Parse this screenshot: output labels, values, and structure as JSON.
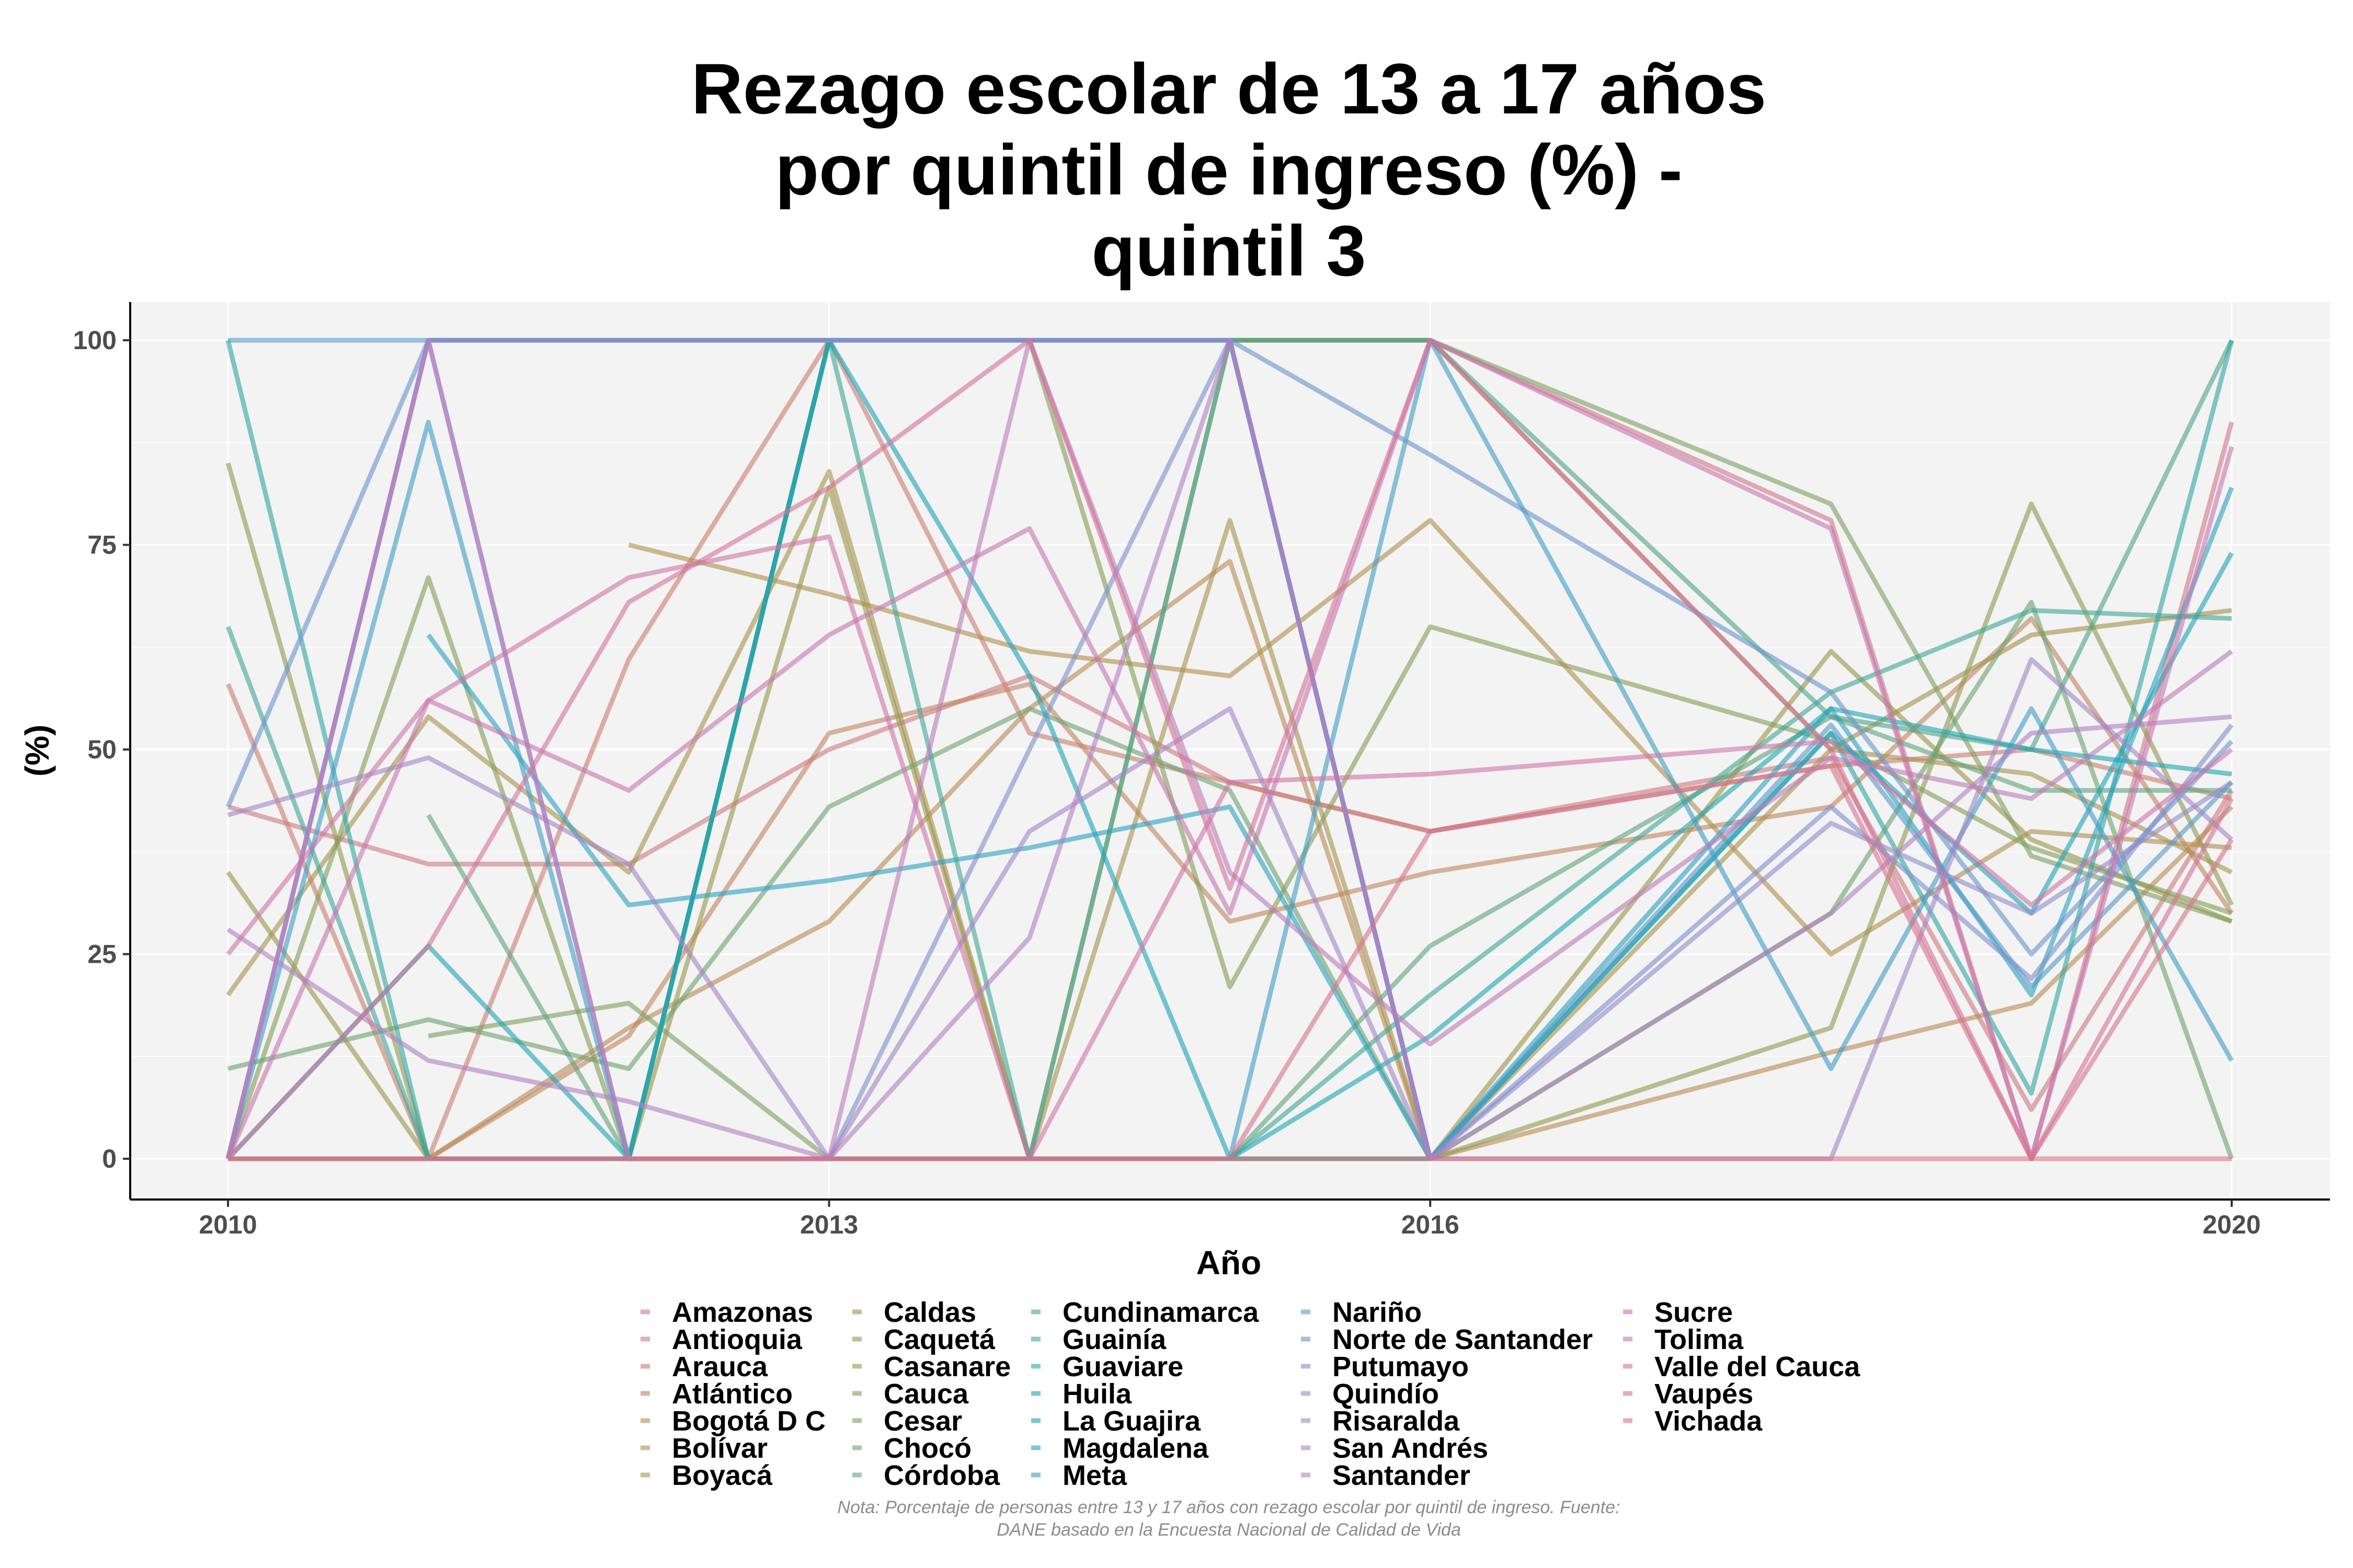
{
  "chart_data": {
    "type": "line",
    "title": "Rezago escolar de 13 a 17 años por quintil de ingreso (%) - quintil 3",
    "title_lines": [
      "Rezago escolar de 13 a 17 años",
      "por quintil de ingreso (%) -",
      "quintil 3"
    ],
    "xlabel": "Año",
    "ylabel": "(%)",
    "xlim": [
      2010,
      2020
    ],
    "ylim": [
      0,
      100
    ],
    "x_ticks": [
      2010,
      2013,
      2016,
      2020
    ],
    "y_ticks": [
      0,
      25,
      50,
      75,
      100
    ],
    "grid": true,
    "legend_position": "bottom",
    "x": [
      2010,
      2011,
      2012,
      2013,
      2014,
      2015,
      2016,
      2018,
      2019,
      2020
    ],
    "note": "Nota: Porcentaje de personas entre 13 y 17 años con rezago escolar por quintil de ingreso. Fuente: DANE basado en la Encuesta Nacional de Calidad de Vida",
    "series": [
      {
        "name": "Amazonas",
        "color": "#d0768c",
        "values": [
          null,
          100,
          100,
          100,
          100,
          100,
          100,
          78,
          0,
          90
        ]
      },
      {
        "name": "Antioquia",
        "color": "#ce7a7f",
        "values": [
          43,
          36,
          36,
          50,
          59,
          46,
          40,
          49,
          6,
          45
        ]
      },
      {
        "name": "Arauca",
        "color": "#c97e6f",
        "values": [
          58,
          0,
          61,
          100,
          52,
          46,
          40,
          48,
          50,
          44
        ]
      },
      {
        "name": "Atlántico",
        "color": "#c2845f",
        "values": [
          0,
          0,
          15,
          52,
          58,
          29,
          35,
          43,
          66,
          30
        ]
      },
      {
        "name": "Bogotá D C",
        "color": "#b98a53",
        "values": [
          null,
          0,
          16,
          29,
          55,
          73,
          0,
          13,
          19,
          43
        ]
      },
      {
        "name": "Bolívar",
        "color": "#b08f4d",
        "values": [
          null,
          null,
          75,
          69,
          62,
          59,
          78,
          25,
          40,
          38
        ]
      },
      {
        "name": "Boyacá",
        "color": "#a6934c",
        "values": [
          20,
          54,
          35,
          84,
          0,
          78,
          0,
          50,
          47,
          35
        ]
      },
      {
        "name": "Caldas",
        "color": "#a19148",
        "values": [
          null,
          100,
          100,
          100,
          100,
          100,
          100,
          50,
          64,
          67
        ]
      },
      {
        "name": "Caquetá",
        "color": "#99964a",
        "values": [
          35,
          0,
          0,
          82,
          0,
          0,
          0,
          62,
          39,
          29
        ]
      },
      {
        "name": "Casanare",
        "color": "#909a4f",
        "values": [
          85,
          0,
          0,
          100,
          100,
          100,
          0,
          16,
          80,
          31
        ]
      },
      {
        "name": "Cauca",
        "color": "#869d57",
        "values": [
          0,
          71,
          0,
          100,
          100,
          21,
          65,
          51,
          38,
          30
        ]
      },
      {
        "name": "Cesar",
        "color": "#7ba061",
        "values": [
          null,
          15,
          19,
          0,
          0,
          100,
          100,
          80,
          37,
          29
        ]
      },
      {
        "name": "Chocó",
        "color": "#6ea26e",
        "values": [
          11,
          17,
          11,
          43,
          55,
          45,
          0,
          30,
          68,
          0
        ]
      },
      {
        "name": "Córdoba",
        "color": "#5fa37c",
        "values": [
          null,
          42,
          0,
          0,
          0,
          0,
          26,
          54,
          45,
          45
        ]
      },
      {
        "name": "Cundinamarca",
        "color": "#4fa48a",
        "values": [
          0,
          0,
          0,
          0,
          0,
          100,
          100,
          54,
          50,
          100
        ]
      },
      {
        "name": "Guainía",
        "color": "#3fa698",
        "values": [
          65,
          0,
          0,
          100,
          0,
          0,
          20,
          57,
          67,
          66
        ]
      },
      {
        "name": "Guaviare",
        "color": "#2ea6a4",
        "values": [
          100,
          0,
          0,
          100,
          100,
          100,
          0,
          52,
          8,
          100
        ]
      },
      {
        "name": "Huila",
        "color": "#1fa5b0",
        "values": [
          null,
          0,
          0,
          0,
          0,
          0,
          15,
          55,
          50,
          47
        ]
      },
      {
        "name": "La Guajira",
        "color": "#1ea3b8",
        "values": [
          0,
          26,
          0,
          100,
          59,
          0,
          0,
          52,
          30,
          74
        ]
      },
      {
        "name": "Magdalena",
        "color": "#2aa1bf",
        "values": [
          null,
          64,
          31,
          34,
          38,
          43,
          0,
          55,
          20,
          82
        ]
      },
      {
        "name": "Meta",
        "color": "#3f9dc5",
        "values": [
          0,
          90,
          0,
          0,
          0,
          0,
          100,
          11,
          55,
          12
        ]
      },
      {
        "name": "Nariño",
        "color": "#5699c9",
        "values": [
          100,
          100,
          100,
          100,
          100,
          100,
          0,
          53,
          21,
          46
        ]
      },
      {
        "name": "Norte de Santander",
        "color": "#6b95cb",
        "values": [
          43,
          100,
          100,
          100,
          100,
          100,
          86,
          57,
          25,
          51
        ]
      },
      {
        "name": "Putumayo",
        "color": "#7f90cb",
        "values": [
          0,
          100,
          0,
          0,
          50,
          100,
          0,
          43,
          22,
          53
        ]
      },
      {
        "name": "Quindío",
        "color": "#918bca",
        "values": [
          0,
          100,
          100,
          100,
          100,
          100,
          0,
          41,
          30,
          46
        ]
      },
      {
        "name": "Risaralda",
        "color": "#a186c6",
        "values": [
          42,
          49,
          36,
          0,
          40,
          55,
          0,
          0,
          61,
          39
        ]
      },
      {
        "name": "San Andrés",
        "color": "#b080c1",
        "values": [
          28,
          12,
          7,
          0,
          27,
          100,
          0,
          30,
          52,
          54
        ]
      },
      {
        "name": "Santander",
        "color": "#bd7cba",
        "values": [
          0,
          100,
          0,
          0,
          100,
          35,
          14,
          49,
          44,
          62
        ]
      },
      {
        "name": "Sucre",
        "color": "#c777b1",
        "values": [
          0,
          56,
          45,
          64,
          77,
          30,
          100,
          77,
          0,
          87
        ]
      },
      {
        "name": "Tolima",
        "color": "#cf74a6",
        "values": [
          25,
          56,
          71,
          76,
          0,
          46,
          47,
          51,
          31,
          50
        ]
      },
      {
        "name": "Valle del Cauca",
        "color": "#d4739a",
        "values": [
          0,
          26,
          68,
          82,
          100,
          33,
          100,
          50,
          0,
          44
        ]
      },
      {
        "name": "Vaupés",
        "color": "#d5748f",
        "values": [
          0,
          0,
          0,
          0,
          0,
          0,
          40,
          48,
          0,
          39
        ]
      },
      {
        "name": "Vichada",
        "color": "#d57683",
        "values": [
          0,
          0,
          0,
          0,
          0,
          0,
          0,
          0,
          0,
          0
        ]
      }
    ]
  }
}
